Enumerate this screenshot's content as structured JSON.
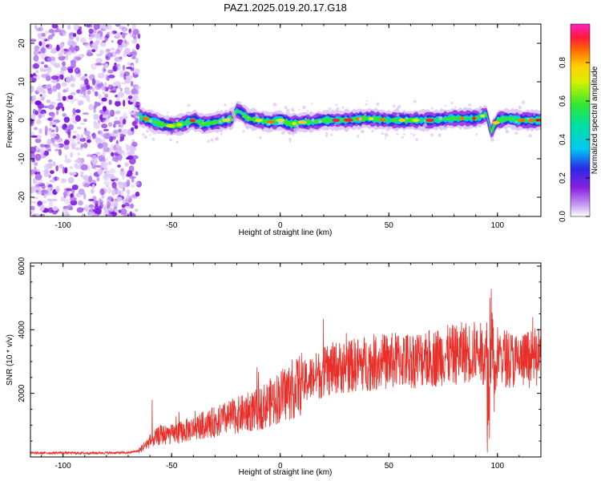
{
  "title": "PAZ1.2025.019.20.17.G18",
  "chart_data": [
    {
      "type": "heatmap",
      "xlabel": "Height of straight line (km)",
      "ylabel": "Frequency (Hz)",
      "xlim": [
        -115,
        120
      ],
      "ylim": [
        -25,
        25
      ],
      "xticks": [
        -100,
        -50,
        0,
        50,
        100
      ],
      "yticks": [
        -20,
        -10,
        0,
        10,
        20
      ],
      "colorbar": {
        "label": "Normalized spectral amplitude",
        "range": [
          0,
          1
        ],
        "ticks": [
          0.0,
          0.2,
          0.4,
          0.6,
          0.8
        ]
      },
      "noise_region_x": [
        -115,
        -65
      ],
      "signal_trace": {
        "x": [
          -65,
          -60,
          -55,
          -50,
          -45,
          -40,
          -35,
          -30,
          -25,
          -22,
          -20,
          -18,
          -15,
          -10,
          -5,
          0,
          5,
          10,
          15,
          20,
          25,
          30,
          40,
          50,
          60,
          70,
          80,
          90,
          95,
          97,
          100,
          105,
          110,
          120
        ],
        "y": [
          1.0,
          0.0,
          -1.0,
          -1.5,
          -1.0,
          0.0,
          -1.0,
          -0.5,
          0.0,
          0.5,
          2.5,
          2.0,
          0.5,
          0.0,
          -0.5,
          0.0,
          -1.0,
          -0.5,
          -0.5,
          0.0,
          0.0,
          0.0,
          0.5,
          0.0,
          0.0,
          0.0,
          0.5,
          0.5,
          1.5,
          -3.0,
          0.0,
          0.5,
          0.0,
          0.0
        ]
      }
    },
    {
      "type": "line",
      "xlabel": "Height of straight line (km)",
      "ylabel": "SNR (10 * v/v)",
      "xlim": [
        -115,
        120
      ],
      "ylim": [
        0,
        6100
      ],
      "xticks": [
        -100,
        -50,
        0,
        50,
        100
      ],
      "yticks": [
        2000,
        4000,
        6000
      ],
      "series": [
        {
          "color": "#e8302b",
          "x": [
            -115,
            -100,
            -90,
            -80,
            -70,
            -65,
            -60,
            -55,
            -50,
            -45,
            -40,
            -35,
            -30,
            -25,
            -20,
            -15,
            -10,
            -5,
            0,
            5,
            10,
            15,
            20,
            25,
            30,
            35,
            40,
            45,
            50,
            55,
            60,
            65,
            70,
            75,
            80,
            85,
            90,
            95,
            96,
            97,
            98,
            100,
            105,
            110,
            115,
            120
          ],
          "y": [
            120,
            130,
            120,
            130,
            130,
            200,
            500,
            700,
            700,
            800,
            900,
            1000,
            1100,
            1200,
            1300,
            1400,
            1500,
            1700,
            1900,
            2100,
            2300,
            2500,
            2650,
            2800,
            2850,
            2900,
            2950,
            3000,
            3000,
            3050,
            3050,
            3100,
            3100,
            3200,
            3200,
            3300,
            3300,
            3200,
            1500,
            5000,
            2000,
            3200,
            3100,
            3000,
            3100,
            3100
          ]
        }
      ]
    }
  ]
}
